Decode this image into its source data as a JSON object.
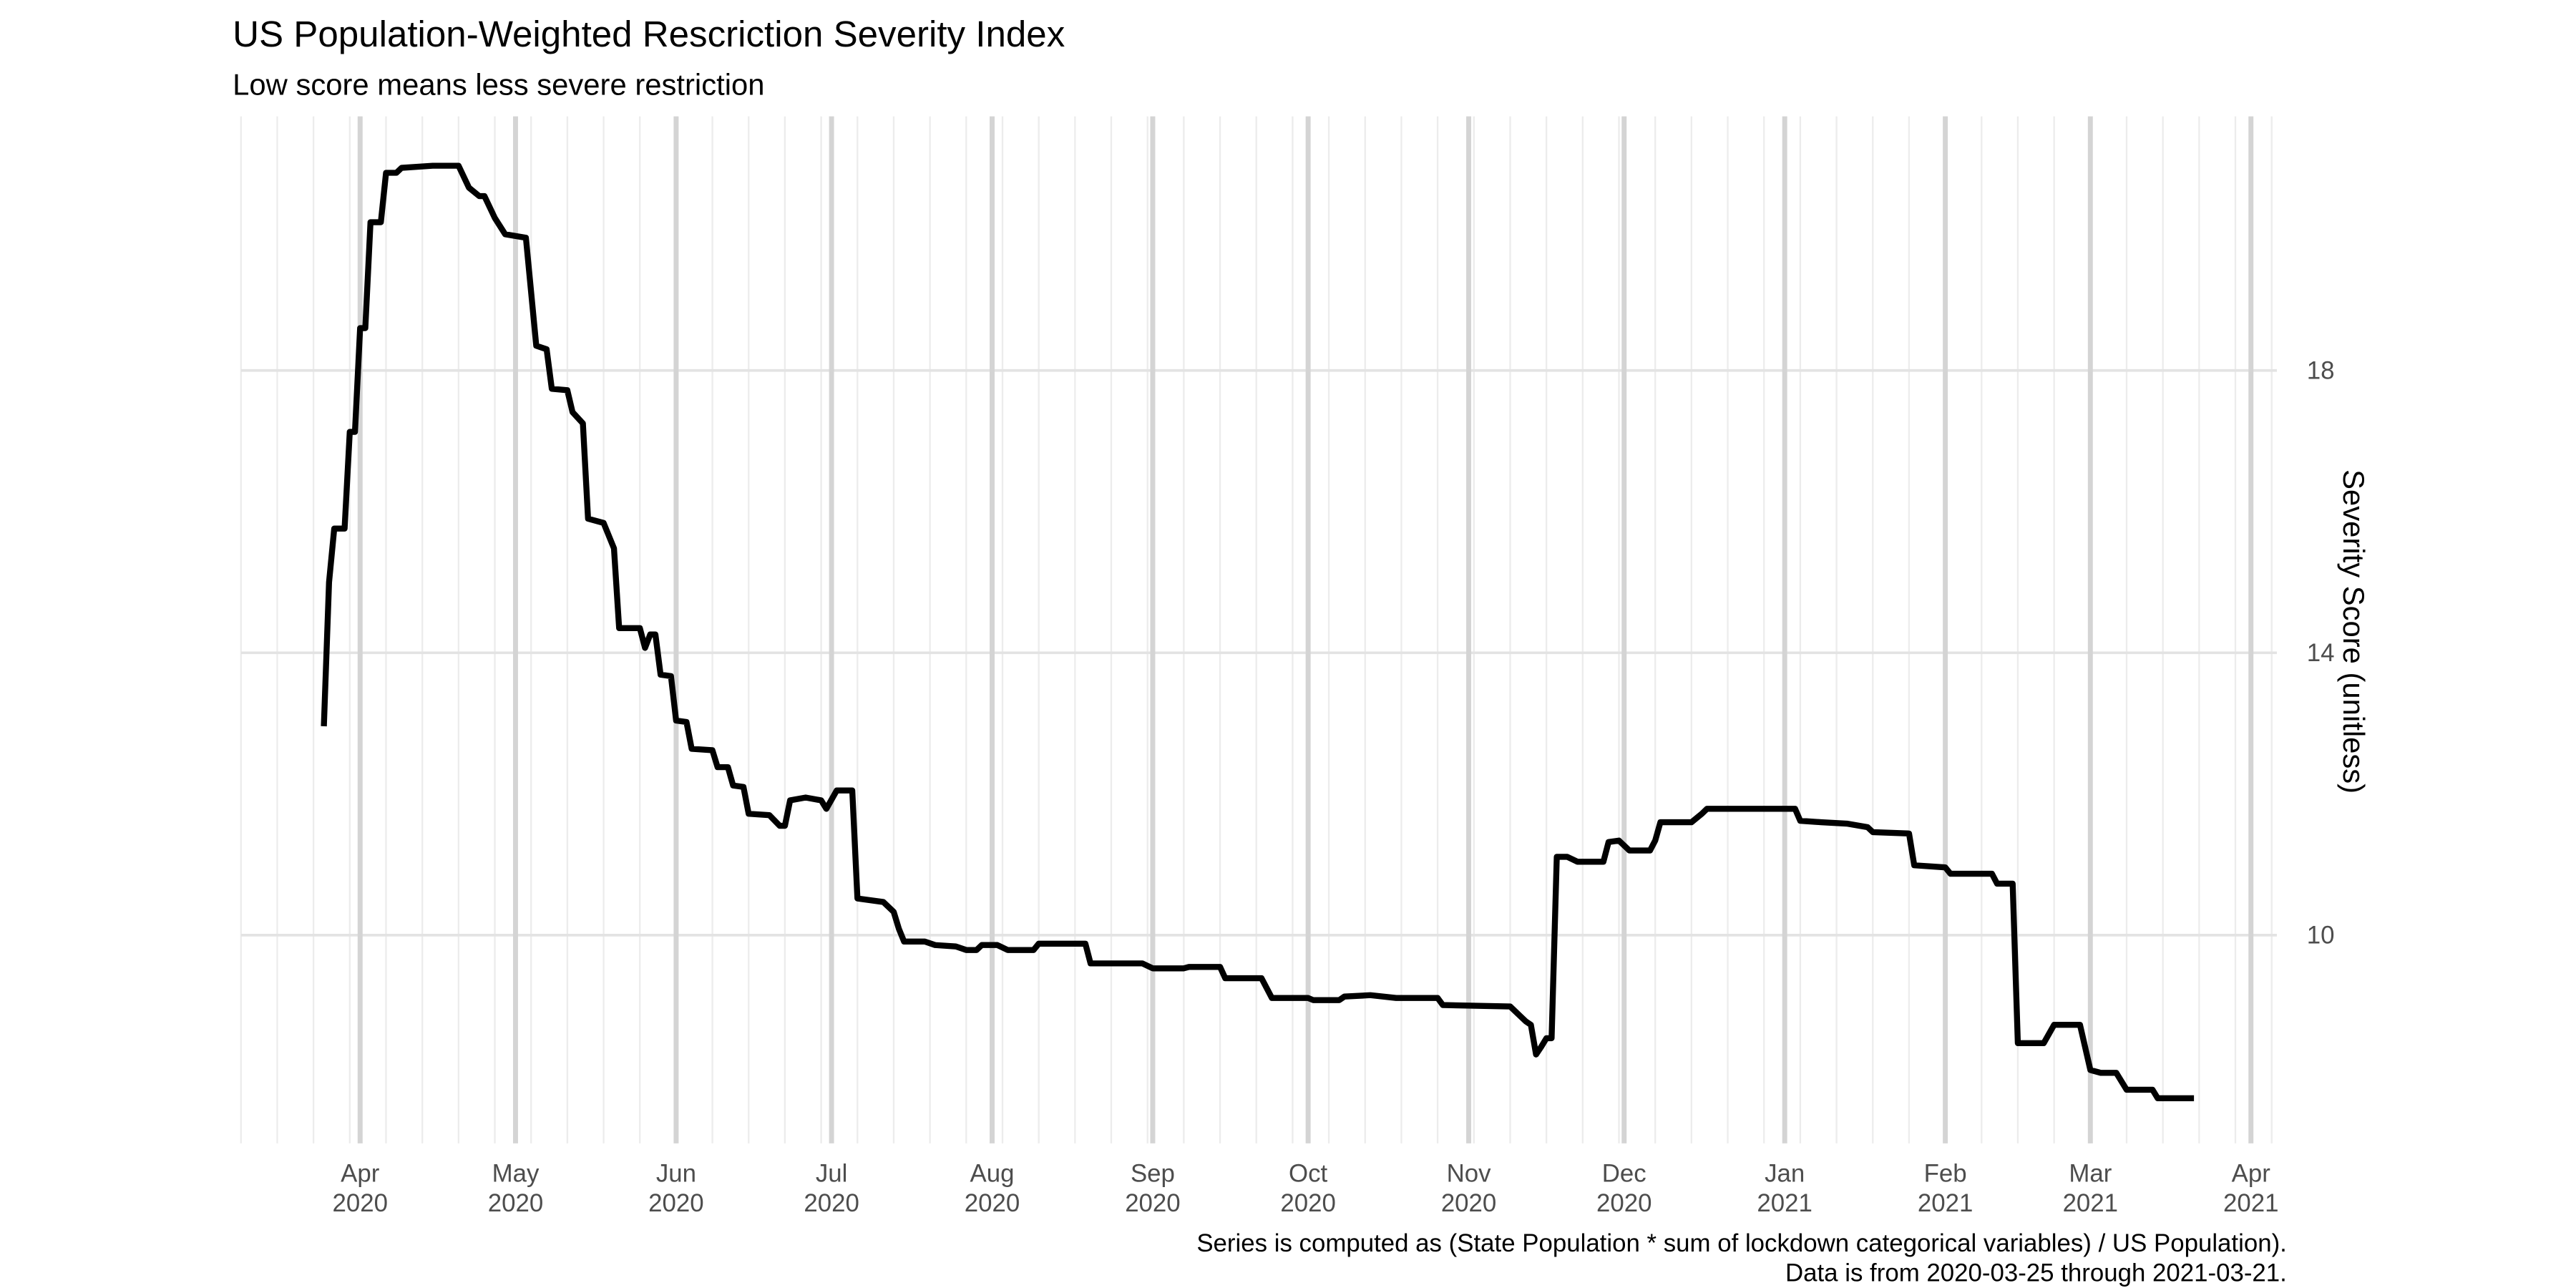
{
  "chart_data": {
    "type": "line",
    "title": "US Population-Weighted Rescriction Severity Index",
    "subtitle": "Low score means less severe restriction",
    "y_label": "Severity Score (unitless)",
    "caption": [
      "Series is computed as (State Population * sum of lockdown categorical variables) / US Population).",
      "Data is from 2020-03-25 through 2021-03-21."
    ],
    "color": "#000000",
    "x": [
      "2020-03-25",
      "2020-03-26",
      "2020-03-27",
      "2020-03-29",
      "2020-03-30",
      "2020-03-31",
      "2020-04-01",
      "2020-04-02",
      "2020-04-03",
      "2020-04-05",
      "2020-04-06",
      "2020-04-08",
      "2020-04-09",
      "2020-04-15",
      "2020-04-20",
      "2020-04-22",
      "2020-04-24",
      "2020-04-25",
      "2020-04-27",
      "2020-04-29",
      "2020-05-03",
      "2020-05-05",
      "2020-05-07",
      "2020-05-08",
      "2020-05-11",
      "2020-05-12",
      "2020-05-14",
      "2020-05-15",
      "2020-05-18",
      "2020-05-20",
      "2020-05-21",
      "2020-05-25",
      "2020-05-26",
      "2020-05-27",
      "2020-05-28",
      "2020-05-29",
      "2020-05-31",
      "2020-06-01",
      "2020-06-03",
      "2020-06-04",
      "2020-06-08",
      "2020-06-09",
      "2020-06-11",
      "2020-06-12",
      "2020-06-14",
      "2020-06-15",
      "2020-06-19",
      "2020-06-21",
      "2020-06-22",
      "2020-06-23",
      "2020-06-26",
      "2020-06-29",
      "2020-06-30",
      "2020-07-02",
      "2020-07-05",
      "2020-07-06",
      "2020-07-11",
      "2020-07-13",
      "2020-07-14",
      "2020-07-15",
      "2020-07-19",
      "2020-07-21",
      "2020-07-25",
      "2020-07-27",
      "2020-07-29",
      "2020-07-30",
      "2020-08-02",
      "2020-08-04",
      "2020-08-09",
      "2020-08-10",
      "2020-08-19",
      "2020-08-20",
      "2020-08-30",
      "2020-09-01",
      "2020-09-07",
      "2020-09-08",
      "2020-09-14",
      "2020-09-15",
      "2020-09-22",
      "2020-09-24",
      "2020-10-01",
      "2020-10-02",
      "2020-10-07",
      "2020-10-08",
      "2020-10-13",
      "2020-10-18",
      "2020-10-26",
      "2020-10-27",
      "2020-11-09",
      "2020-11-11",
      "2020-11-12",
      "2020-11-13",
      "2020-11-14",
      "2020-11-15",
      "2020-11-16",
      "2020-11-17",
      "2020-11-18",
      "2020-11-20",
      "2020-11-22",
      "2020-11-27",
      "2020-11-28",
      "2020-11-30",
      "2020-12-02",
      "2020-12-06",
      "2020-12-07",
      "2020-12-08",
      "2020-12-14",
      "2020-12-16",
      "2020-12-17",
      "2021-01-03",
      "2021-01-04",
      "2021-01-08",
      "2021-01-13",
      "2021-01-17",
      "2021-01-18",
      "2021-01-25",
      "2021-01-26",
      "2021-02-01",
      "2021-02-02",
      "2021-02-10",
      "2021-02-11",
      "2021-02-14",
      "2021-02-15",
      "2021-02-20",
      "2021-02-22",
      "2021-02-27",
      "2021-03-01",
      "2021-03-03",
      "2021-03-06",
      "2021-03-08",
      "2021-03-13",
      "2021-03-14",
      "2021-03-21"
    ],
    "values": [
      12.96,
      15.0,
      15.76,
      15.76,
      17.13,
      17.13,
      18.6,
      18.6,
      20.1,
      20.1,
      20.8,
      20.8,
      20.87,
      20.9,
      20.9,
      20.59,
      20.47,
      20.47,
      20.16,
      19.93,
      19.88,
      18.35,
      18.3,
      17.74,
      17.72,
      17.41,
      17.25,
      15.9,
      15.84,
      15.48,
      14.35,
      14.35,
      14.07,
      14.26,
      14.26,
      13.69,
      13.67,
      13.04,
      13.02,
      12.64,
      12.62,
      12.38,
      12.38,
      12.12,
      12.1,
      11.72,
      11.7,
      11.55,
      11.55,
      11.91,
      11.95,
      11.91,
      11.79,
      12.05,
      12.05,
      10.52,
      10.47,
      10.33,
      10.09,
      9.91,
      9.91,
      9.86,
      9.84,
      9.79,
      9.79,
      9.86,
      9.86,
      9.79,
      9.79,
      9.88,
      9.88,
      9.6,
      9.6,
      9.53,
      9.53,
      9.55,
      9.55,
      9.39,
      9.39,
      9.11,
      9.11,
      9.08,
      9.08,
      9.13,
      9.15,
      9.11,
      9.11,
      9.01,
      8.99,
      8.85,
      8.78,
      8.73,
      8.31,
      8.42,
      8.54,
      8.54,
      11.11,
      11.11,
      11.04,
      11.04,
      11.32,
      11.34,
      11.2,
      11.2,
      11.34,
      11.6,
      11.6,
      11.72,
      11.79,
      11.79,
      11.62,
      11.6,
      11.58,
      11.53,
      11.46,
      11.44,
      10.99,
      10.96,
      10.87,
      10.87,
      10.73,
      10.73,
      8.47,
      8.47,
      8.73,
      8.73,
      8.09,
      8.05,
      8.05,
      7.81,
      7.81,
      7.69,
      7.69
    ],
    "xlim": [
      "2020-03-09",
      "2021-04-06"
    ],
    "xticks": [
      {
        "value": "2020-04-01",
        "label": "Apr\n2020"
      },
      {
        "value": "2020-05-01",
        "label": "May\n2020"
      },
      {
        "value": "2020-06-01",
        "label": "Jun\n2020"
      },
      {
        "value": "2020-07-01",
        "label": "Jul\n2020"
      },
      {
        "value": "2020-08-01",
        "label": "Aug\n2020"
      },
      {
        "value": "2020-09-01",
        "label": "Sep\n2020"
      },
      {
        "value": "2020-10-01",
        "label": "Oct\n2020"
      },
      {
        "value": "2020-11-01",
        "label": "Nov\n2020"
      },
      {
        "value": "2020-12-01",
        "label": "Dec\n2020"
      },
      {
        "value": "2021-01-01",
        "label": "Jan\n2021"
      },
      {
        "value": "2021-02-01",
        "label": "Feb\n2021"
      },
      {
        "value": "2021-03-01",
        "label": "Mar\n2021"
      },
      {
        "value": "2021-04-01",
        "label": "Apr\n2021"
      }
    ],
    "ylim": [
      7.05,
      21.6
    ],
    "yticks": [
      10,
      14,
      18
    ],
    "y_axis_side": "right",
    "grid": true
  }
}
